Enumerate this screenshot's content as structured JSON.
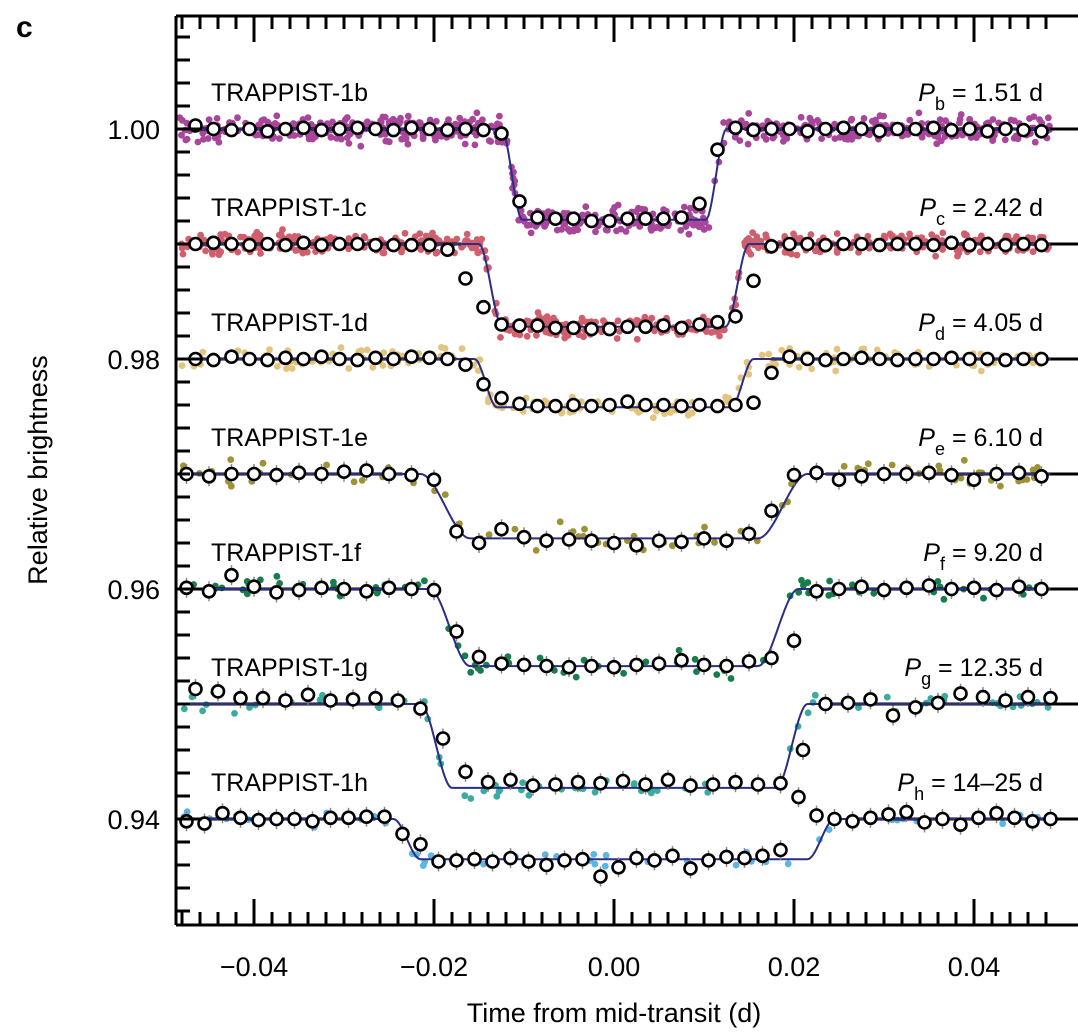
{
  "panel_label": "c",
  "chart_data": {
    "type": "line",
    "xlabel": "Time from mid-transit (d)",
    "ylabel": "Relative brightness",
    "xlim": [
      -0.0485,
      0.0485
    ],
    "ylim": [
      0.9306,
      1.0095
    ],
    "x_ticks": [
      -0.04,
      -0.02,
      0.0,
      0.02,
      0.04
    ],
    "x_tick_labels": [
      "−0.04",
      "−0.02",
      "0.00",
      "0.02",
      "0.04"
    ],
    "y_ticks": [
      0.94,
      0.96,
      0.98,
      1.0
    ],
    "y_tick_labels": [
      "0.94",
      "0.96",
      "0.98",
      "1.00"
    ],
    "grid": false,
    "model_color": "#2b2e84",
    "series": [
      {
        "name": "TRAPPIST-1b",
        "period_symbol": "P",
        "period_sub": "b",
        "period_text": " = 1.51 d",
        "baseline": 1.0,
        "depth": 0.0079,
        "t_half": 0.0125,
        "ingress": 0.0023,
        "color": "#a8469c",
        "binned_x": [
          -0.0465,
          -0.0445,
          -0.0425,
          -0.0405,
          -0.0385,
          -0.0365,
          -0.0345,
          -0.0325,
          -0.0305,
          -0.0285,
          -0.0265,
          -0.0245,
          -0.0225,
          -0.0205,
          -0.0185,
          -0.0165,
          -0.0145,
          -0.0125,
          -0.0105,
          -0.0085,
          -0.0065,
          -0.0045,
          -0.0025,
          -0.0005,
          0.0015,
          0.0035,
          0.0055,
          0.0075,
          0.0095,
          0.0115,
          0.0135,
          0.0155,
          0.0175,
          0.0195,
          0.0215,
          0.0235,
          0.0255,
          0.0275,
          0.0295,
          0.0315,
          0.0335,
          0.0355,
          0.0375,
          0.0395,
          0.0415,
          0.0435,
          0.0455,
          0.0475
        ],
        "binned_y": [
          1.0003,
          1.0,
          0.9999,
          1.0,
          0.9998,
          1.0,
          1.0001,
          0.9999,
          1.0,
          1.0001,
          1.0,
          0.9999,
          1.0001,
          1.0,
          0.9999,
          1.0,
          0.9999,
          0.9996,
          0.9937,
          0.9923,
          0.9922,
          0.9922,
          0.992,
          0.992,
          0.9922,
          0.9922,
          0.9922,
          0.9923,
          0.9935,
          0.9982,
          1.0001,
          0.9999,
          1.0,
          1.0,
          0.9998,
          1.0,
          1.0001,
          1.0,
          0.9998,
          1.0,
          1.0,
          1.0001,
          0.9999,
          1.0,
          0.9998,
          1.0,
          0.9999,
          0.9998
        ]
      },
      {
        "name": "TRAPPIST-1c",
        "period_symbol": "P",
        "period_sub": "c",
        "period_text": " = 2.42 d",
        "baseline": 0.99,
        "depth": 0.0072,
        "t_half": 0.015,
        "ingress": 0.0026,
        "color": "#d05f6e",
        "binned_x": [
          -0.0465,
          -0.0445,
          -0.0425,
          -0.0405,
          -0.0385,
          -0.0365,
          -0.0345,
          -0.0325,
          -0.0305,
          -0.0285,
          -0.0265,
          -0.0245,
          -0.0225,
          -0.0205,
          -0.0185,
          -0.0165,
          -0.0145,
          -0.0125,
          -0.0105,
          -0.0085,
          -0.0065,
          -0.0045,
          -0.0025,
          -0.0005,
          0.0015,
          0.0035,
          0.0055,
          0.0075,
          0.0095,
          0.0115,
          0.0135,
          0.0155,
          0.0175,
          0.0195,
          0.0215,
          0.0235,
          0.0255,
          0.0275,
          0.0295,
          0.0315,
          0.0335,
          0.0355,
          0.0375,
          0.0395,
          0.0415,
          0.0435,
          0.0455,
          0.0475
        ],
        "binned_y": [
          0.99,
          0.9901,
          0.99,
          0.9899,
          0.99,
          0.9899,
          0.9901,
          0.9899,
          0.99,
          0.99,
          0.9899,
          0.9899,
          0.9899,
          0.9899,
          0.9895,
          0.987,
          0.9845,
          0.983,
          0.9829,
          0.9829,
          0.9827,
          0.9827,
          0.9826,
          0.9826,
          0.9828,
          0.9828,
          0.9829,
          0.9827,
          0.983,
          0.9832,
          0.9837,
          0.9868,
          0.9898,
          0.99,
          0.99,
          0.9899,
          0.99,
          0.99,
          0.9899,
          0.99,
          0.99,
          0.9899,
          0.9901,
          0.9899,
          0.99,
          0.9899,
          0.99,
          0.9899
        ]
      },
      {
        "name": "TRAPPIST-1d",
        "period_symbol": "P",
        "period_sub": "d",
        "period_text": " = 4.05 d",
        "baseline": 0.98,
        "depth": 0.0042,
        "t_half": 0.0155,
        "ingress": 0.0025,
        "color": "#e3c47f",
        "binned_x": [
          -0.0465,
          -0.0445,
          -0.0425,
          -0.0405,
          -0.0385,
          -0.0365,
          -0.0345,
          -0.0325,
          -0.0305,
          -0.0285,
          -0.0265,
          -0.0245,
          -0.0225,
          -0.0205,
          -0.0185,
          -0.0165,
          -0.0145,
          -0.0125,
          -0.0105,
          -0.0085,
          -0.0065,
          -0.0045,
          -0.0025,
          -0.0005,
          0.0015,
          0.0035,
          0.0055,
          0.0075,
          0.0095,
          0.0115,
          0.0135,
          0.0155,
          0.0175,
          0.0195,
          0.0215,
          0.0235,
          0.0255,
          0.0275,
          0.0295,
          0.0315,
          0.0335,
          0.0355,
          0.0375,
          0.0395,
          0.0415,
          0.0435,
          0.0455,
          0.0475
        ],
        "binned_y": [
          0.98,
          0.9799,
          0.9802,
          0.98,
          0.9799,
          0.9801,
          0.98,
          0.9802,
          0.98,
          0.9799,
          0.9801,
          0.98,
          0.9802,
          0.9801,
          0.98,
          0.9795,
          0.9778,
          0.9766,
          0.9761,
          0.9759,
          0.9759,
          0.976,
          0.9759,
          0.976,
          0.9763,
          0.976,
          0.976,
          0.9759,
          0.976,
          0.9759,
          0.976,
          0.9762,
          0.9788,
          0.9802,
          0.98,
          0.9799,
          0.98,
          0.9801,
          0.98,
          0.9799,
          0.98,
          0.98,
          0.9801,
          0.98,
          0.98,
          0.9799,
          0.98,
          0.98
        ]
      },
      {
        "name": "TRAPPIST-1e",
        "period_symbol": "P",
        "period_sub": "e",
        "period_text": " = 6.10 d",
        "baseline": 0.97,
        "depth": 0.0056,
        "t_half": 0.0215,
        "ingress": 0.0055,
        "color": "#9e9234",
        "binned_x": [
          -0.0475,
          -0.045,
          -0.0425,
          -0.04,
          -0.0375,
          -0.035,
          -0.0325,
          -0.03,
          -0.0275,
          -0.025,
          -0.0225,
          -0.02,
          -0.0175,
          -0.015,
          -0.0125,
          -0.01,
          -0.0075,
          -0.005,
          -0.0025,
          0.0,
          0.0025,
          0.005,
          0.0075,
          0.01,
          0.0125,
          0.015,
          0.0175,
          0.02,
          0.0225,
          0.025,
          0.0275,
          0.03,
          0.0325,
          0.035,
          0.0375,
          0.04,
          0.0425,
          0.045,
          0.0475
        ],
        "binned_y": [
          0.97,
          0.9698,
          0.97,
          0.97,
          0.9699,
          0.9701,
          0.97,
          0.9702,
          0.9703,
          0.97,
          0.9699,
          0.9695,
          0.965,
          0.964,
          0.9652,
          0.9645,
          0.9642,
          0.9643,
          0.9642,
          0.964,
          0.9638,
          0.9642,
          0.9641,
          0.9644,
          0.9642,
          0.9648,
          0.9668,
          0.9699,
          0.9701,
          0.9695,
          0.9698,
          0.97,
          0.97,
          0.9701,
          0.9699,
          0.9695,
          0.97,
          0.9701,
          0.9698
        ]
      },
      {
        "name": "TRAPPIST-1f",
        "period_symbol": "P",
        "period_sub": "f",
        "period_text": " = 9.20 d",
        "baseline": 0.96,
        "depth": 0.0067,
        "t_half": 0.0205,
        "ingress": 0.0045,
        "color": "#167d4b",
        "binned_x": [
          -0.0475,
          -0.045,
          -0.0425,
          -0.04,
          -0.0375,
          -0.035,
          -0.0325,
          -0.03,
          -0.0275,
          -0.025,
          -0.0225,
          -0.02,
          -0.0175,
          -0.015,
          -0.0125,
          -0.01,
          -0.0075,
          -0.005,
          -0.0025,
          0.0,
          0.0025,
          0.005,
          0.0075,
          0.01,
          0.0125,
          0.015,
          0.0175,
          0.02,
          0.0225,
          0.025,
          0.0275,
          0.03,
          0.0325,
          0.035,
          0.0375,
          0.04,
          0.0425,
          0.045,
          0.0475
        ],
        "binned_y": [
          0.9601,
          0.9598,
          0.9612,
          0.9602,
          0.9597,
          0.9599,
          0.9601,
          0.96,
          0.9598,
          0.9601,
          0.96,
          0.9599,
          0.9563,
          0.9541,
          0.9535,
          0.9534,
          0.9533,
          0.9532,
          0.9533,
          0.9532,
          0.9534,
          0.9535,
          0.9538,
          0.9534,
          0.9533,
          0.9537,
          0.954,
          0.9555,
          0.9598,
          0.96,
          0.9602,
          0.9599,
          0.9601,
          0.9603,
          0.96,
          0.9601,
          0.9599,
          0.9602,
          0.96
        ]
      },
      {
        "name": "TRAPPIST-1g",
        "period_symbol": "P",
        "period_sub": "g",
        "period_text": " = 12.35 d",
        "baseline": 0.95,
        "depth": 0.0073,
        "t_half": 0.0215,
        "ingress": 0.0035,
        "color": "#3aab9e",
        "binned_x": [
          -0.0465,
          -0.044,
          -0.0415,
          -0.039,
          -0.0365,
          -0.034,
          -0.0315,
          -0.029,
          -0.0265,
          -0.024,
          -0.0215,
          -0.019,
          -0.0165,
          -0.014,
          -0.0115,
          -0.009,
          -0.0065,
          -0.004,
          -0.0015,
          0.001,
          0.0035,
          0.006,
          0.0085,
          0.011,
          0.0135,
          0.016,
          0.0185,
          0.021,
          0.0235,
          0.026,
          0.0285,
          0.031,
          0.0335,
          0.036,
          0.0385,
          0.041,
          0.0435,
          0.046,
          0.0485
        ],
        "binned_y": [
          0.9513,
          0.9511,
          0.9505,
          0.9505,
          0.9503,
          0.9508,
          0.9503,
          0.9504,
          0.9505,
          0.9503,
          0.9496,
          0.947,
          0.9441,
          0.9432,
          0.9434,
          0.9429,
          0.943,
          0.9432,
          0.9431,
          0.9433,
          0.943,
          0.9434,
          0.9429,
          0.943,
          0.9432,
          0.943,
          0.9431,
          0.946,
          0.95,
          0.9501,
          0.9504,
          0.949,
          0.9497,
          0.9501,
          0.9509,
          0.9506,
          0.9503,
          0.9506,
          0.9505
        ]
      },
      {
        "name": "TRAPPIST-1h",
        "period_symbol": "P",
        "period_sub": "h",
        "period_text": " = 14–25 d",
        "baseline": 0.94,
        "depth": 0.0035,
        "t_half": 0.0245,
        "ingress": 0.003,
        "color": "#5bb6e2",
        "binned_x": [
          -0.0475,
          -0.0455,
          -0.0435,
          -0.0415,
          -0.0395,
          -0.0375,
          -0.0355,
          -0.0335,
          -0.0315,
          -0.0295,
          -0.0275,
          -0.0255,
          -0.0235,
          -0.0215,
          -0.0195,
          -0.0175,
          -0.0155,
          -0.0135,
          -0.0115,
          -0.0095,
          -0.0075,
          -0.0055,
          -0.0035,
          -0.0015,
          0.0005,
          0.0025,
          0.0045,
          0.0065,
          0.0085,
          0.0105,
          0.0125,
          0.0145,
          0.0165,
          0.0185,
          0.0205,
          0.0225,
          0.0245,
          0.0265,
          0.0285,
          0.0305,
          0.0325,
          0.0345,
          0.0365,
          0.0385,
          0.0405,
          0.0425,
          0.0445,
          0.0465,
          0.0485
        ],
        "binned_y": [
          0.9398,
          0.9396,
          0.9405,
          0.9401,
          0.9399,
          0.94,
          0.94,
          0.9398,
          0.9401,
          0.9401,
          0.9402,
          0.9402,
          0.9387,
          0.9378,
          0.9363,
          0.9364,
          0.9365,
          0.9363,
          0.9366,
          0.9363,
          0.936,
          0.9364,
          0.9365,
          0.935,
          0.9358,
          0.9366,
          0.9364,
          0.9368,
          0.9357,
          0.9364,
          0.9367,
          0.9366,
          0.9368,
          0.9373,
          0.9419,
          0.9403,
          0.94,
          0.9398,
          0.9401,
          0.9404,
          0.9406,
          0.9397,
          0.94,
          0.9395,
          0.9401,
          0.9405,
          0.9401,
          0.9398,
          0.94
        ]
      }
    ]
  }
}
